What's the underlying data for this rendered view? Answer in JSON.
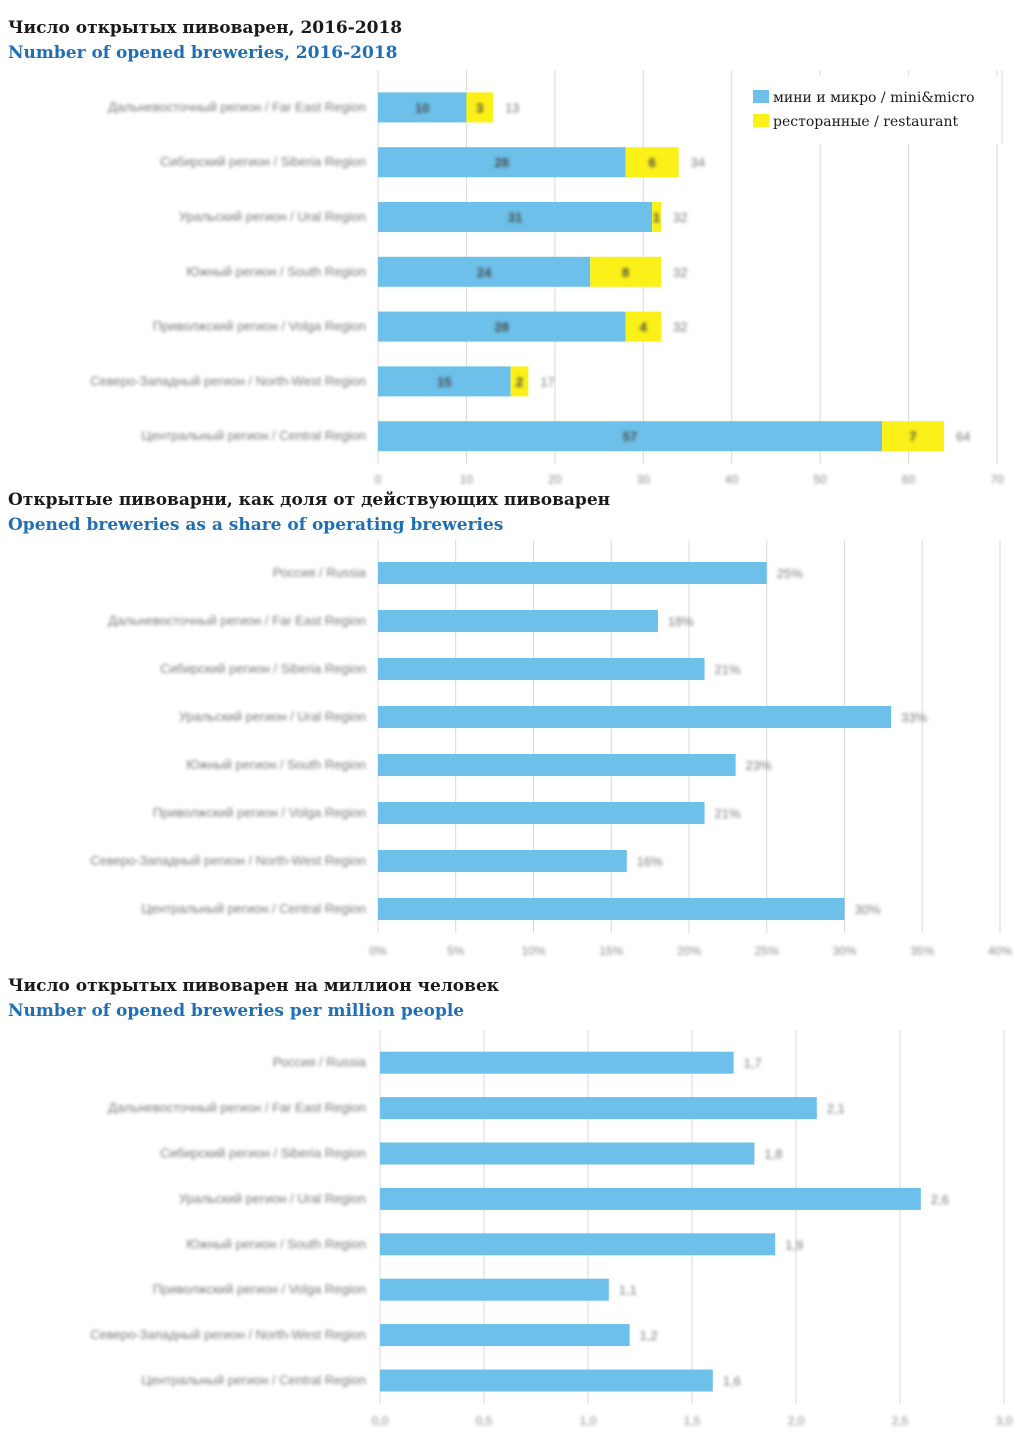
{
  "charts": [
    {
      "title_ru": "Число открытых пивоварен, 2016-2018",
      "title_en": "Number of opened breweries, 2016-2018"
    },
    {
      "title_ru": "Открытые пивоварни, как доля от действующих пивоварен",
      "title_en": "Opened breweries as a share of operating breweries"
    },
    {
      "title_ru": "Число открытых пивоварен на миллион человек",
      "title_en": "Number of opened breweries per million people"
    }
  ],
  "colors": {
    "mini": "#6cc0ea",
    "restaurant": "#fbf018",
    "grid": "#d9d9d9"
  },
  "chart_data": [
    {
      "type": "bar",
      "orientation": "horizontal",
      "stacked": true,
      "title": "Число открытых пивоварен, 2016-2018",
      "subtitle": "Number of opened breweries, 2016-2018",
      "categories": [
        "Дальневосточный регион / Far East Region",
        "Сибирский регион / Siberia Region",
        "Уральский регион / Ural Region",
        "Южный регион / South Region",
        "Приволжский регион / Volga Region",
        "Северо-Западный регион / North-West Region",
        "Центральный регион / Central Region"
      ],
      "series": [
        {
          "name": "мини и микро / mini&micro",
          "values": [
            10,
            28,
            31,
            24,
            28,
            15,
            57
          ]
        },
        {
          "name": "ресторанные / restaurant",
          "values": [
            3,
            6,
            1,
            8,
            4,
            2,
            7
          ]
        }
      ],
      "totals": [
        13,
        34,
        32,
        32,
        32,
        17,
        64
      ],
      "xlim": [
        0,
        70
      ],
      "xticks": [
        0,
        10,
        20,
        30,
        40,
        50,
        60,
        70
      ],
      "grid": true,
      "legend": "top-right"
    },
    {
      "type": "bar",
      "orientation": "horizontal",
      "title": "Открытые пивоварни, как доля от действующих пивоварен",
      "subtitle": "Opened breweries as a share of operating breweries",
      "categories": [
        "Россия / Russia",
        "Дальневосточный регион / Far East Region",
        "Сибирский регион / Siberia Region",
        "Уральский регион / Ural Region",
        "Южный регион / South Region",
        "Приволжский регион / Volga Region",
        "Северо-Западный регион / North-West Region",
        "Центральный регион / Central Region"
      ],
      "values": [
        25,
        18,
        21,
        33,
        23,
        21,
        16,
        30
      ],
      "value_labels": [
        "25%",
        "18%",
        "21%",
        "33%",
        "23%",
        "21%",
        "16%",
        "30%"
      ],
      "xlim": [
        0,
        40
      ],
      "xticks": [
        "0%",
        "5%",
        "10%",
        "15%",
        "20%",
        "25%",
        "30%",
        "35%",
        "40%"
      ],
      "grid": true
    },
    {
      "type": "bar",
      "orientation": "horizontal",
      "title": "Число открытых пивоварен на миллион человек",
      "subtitle": "Number of opened breweries per million people",
      "categories": [
        "Россия / Russia",
        "Дальневосточный регион / Far East Region",
        "Сибирский регион / Siberia Region",
        "Уральский регион / Ural Region",
        "Южный регион / South Region",
        "Приволжский регион / Volga Region",
        "Северо-Западный регион / North-West Region",
        "Центральный регион / Central Region"
      ],
      "values": [
        1.7,
        2.1,
        1.8,
        2.6,
        1.9,
        1.1,
        1.2,
        1.6
      ],
      "value_labels": [
        "1,7",
        "2,1",
        "1,8",
        "2,6",
        "1,9",
        "1,1",
        "1,2",
        "1,6"
      ],
      "xlim": [
        0,
        3
      ],
      "xticks": [
        "0,0",
        "0,5",
        "1,0",
        "1,5",
        "2,0",
        "2,5",
        "3,0"
      ],
      "grid": true
    }
  ]
}
